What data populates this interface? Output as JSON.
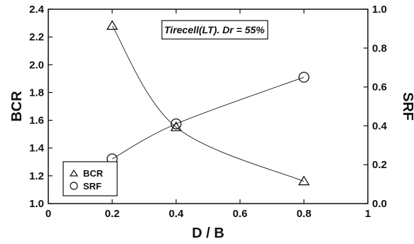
{
  "chart_data": {
    "type": "line",
    "xlabel": "D / B",
    "ylabel_left": "BCR",
    "ylabel_right": "SRF",
    "annotation": "Tirecell(LT). Dr = 55%",
    "x_ticks": [
      "0",
      "0.2",
      "0.4",
      "0.6",
      "0.8",
      "1"
    ],
    "y_left_ticks": [
      "1.0",
      "1.2",
      "1.4",
      "1.6",
      "1.8",
      "2.0",
      "2.2",
      "2.4"
    ],
    "y_right_ticks": [
      "0.0",
      "0.2",
      "0.4",
      "0.6",
      "0.8",
      "1.0"
    ],
    "xlim": [
      0,
      1
    ],
    "ylim_left": [
      1.0,
      2.4
    ],
    "ylim_right": [
      0.0,
      1.0
    ],
    "legend_position": "bottom-left",
    "series": [
      {
        "name": "BCR",
        "axis": "left",
        "marker": "triangle",
        "x": [
          0.2,
          0.4,
          0.8
        ],
        "y": [
          2.28,
          1.55,
          1.16
        ]
      },
      {
        "name": "SRF",
        "axis": "right",
        "marker": "circle",
        "x": [
          0.2,
          0.4,
          0.8
        ],
        "y": [
          0.23,
          0.41,
          0.65
        ]
      }
    ],
    "grid": false
  }
}
